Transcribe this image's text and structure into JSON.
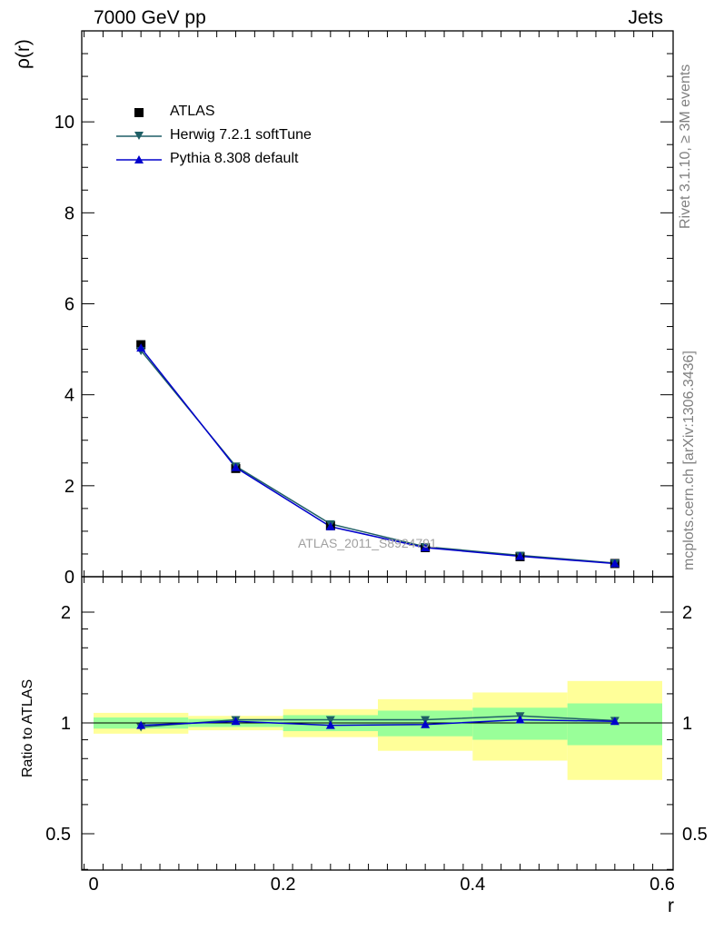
{
  "header": {
    "left_title": "7000 GeV pp",
    "right_title": "Jets"
  },
  "side_labels": {
    "rivet": "Rivet 3.1.10, ≥ 3M events",
    "source": "mcplots.cern.ch [arXiv:1306.3436]"
  },
  "watermark": "ATLAS_2011_S8924791",
  "legend": [
    {
      "label": "ATLAS",
      "color": "#000000",
      "marker": "square"
    },
    {
      "label": "Herwig 7.2.1 softTune",
      "color": "#1f5f66",
      "marker": "triangle-down"
    },
    {
      "label": "Pythia 8.308 default",
      "color": "#0000cc",
      "marker": "triangle-up"
    }
  ],
  "chart_data": [
    {
      "type": "line",
      "ylabel": "ρ(r)",
      "xlim": [
        0,
        0.6
      ],
      "ylim": [
        0,
        12
      ],
      "yticks": [
        "0",
        "2",
        "4",
        "6",
        "8",
        "10"
      ],
      "x": [
        0.05,
        0.15,
        0.25,
        0.35,
        0.45,
        0.55
      ],
      "series": [
        {
          "name": "ATLAS",
          "values": [
            5.1,
            2.38,
            1.12,
            0.64,
            0.44,
            0.29
          ]
        },
        {
          "name": "Herwig 7.2.1 softTune",
          "values": [
            4.97,
            2.43,
            1.16,
            0.66,
            0.47,
            0.3
          ]
        },
        {
          "name": "Pythia 8.308 default",
          "values": [
            5.03,
            2.4,
            1.1,
            0.64,
            0.45,
            0.29
          ]
        }
      ]
    },
    {
      "type": "line",
      "ylabel": "Ratio to ATLAS",
      "xlabel": "r",
      "xlim": [
        0,
        0.6
      ],
      "ylim": [
        0.35,
        2.35
      ],
      "xticks": [
        "0",
        "0.2",
        "0.4",
        "0.6"
      ],
      "yticks": [
        "0.5",
        "1",
        "2"
      ],
      "x": [
        0.05,
        0.15,
        0.25,
        0.35,
        0.45,
        0.55
      ],
      "bins": [
        [
          0,
          0.1
        ],
        [
          0.1,
          0.2
        ],
        [
          0.2,
          0.3
        ],
        [
          0.3,
          0.4
        ],
        [
          0.4,
          0.5
        ],
        [
          0.5,
          0.6
        ]
      ],
      "band_inner": [
        [
          0.965,
          1.035
        ],
        [
          0.975,
          1.025
        ],
        [
          0.95,
          1.05
        ],
        [
          0.92,
          1.08
        ],
        [
          0.9,
          1.1
        ],
        [
          0.87,
          1.13
        ]
      ],
      "band_outer": [
        [
          0.935,
          1.065
        ],
        [
          0.955,
          1.045
        ],
        [
          0.915,
          1.09
        ],
        [
          0.84,
          1.16
        ],
        [
          0.79,
          1.21
        ],
        [
          0.7,
          1.3
        ]
      ],
      "series": [
        {
          "name": "Herwig 7.2.1 softTune",
          "values": [
            0.975,
            1.02,
            1.02,
            1.02,
            1.045,
            1.015
          ]
        },
        {
          "name": "Pythia 8.308 default",
          "values": [
            0.985,
            1.01,
            0.985,
            0.99,
            1.02,
            1.01
          ]
        }
      ]
    }
  ],
  "colors": {
    "band_inner": "#99ff99",
    "band_outer": "#ffff99"
  }
}
